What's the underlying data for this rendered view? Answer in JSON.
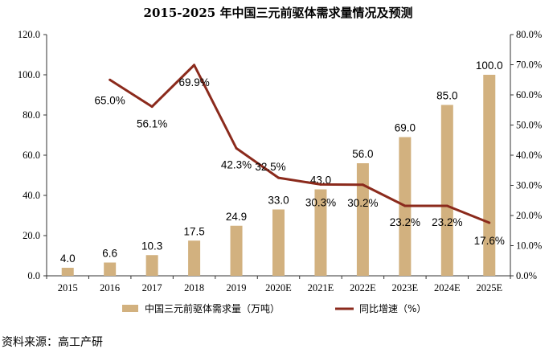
{
  "chart_data": {
    "type": "bar+line",
    "title": "2015-2025 年中国三元前驱体需求量情况及预测",
    "categories": [
      "2015",
      "2016",
      "2017",
      "2018",
      "2019",
      "2020E",
      "2021E",
      "2022E",
      "2023E",
      "2024E",
      "2025E"
    ],
    "series": [
      {
        "name": "中国三元前驱体需求量（万吨）",
        "type": "bar",
        "axis": "left",
        "values": [
          4.0,
          6.6,
          10.3,
          17.5,
          24.9,
          33.0,
          43.0,
          56.0,
          69.0,
          85.0,
          100.0
        ],
        "labels": [
          "4.0",
          "6.6",
          "10.3",
          "17.5",
          "24.9",
          "33.0",
          "43.0",
          "56.0",
          "69.0",
          "85.0",
          "100.0"
        ]
      },
      {
        "name": "同比增速（%）",
        "type": "line",
        "axis": "right",
        "values": [
          null,
          65.0,
          56.1,
          69.9,
          42.3,
          32.5,
          30.3,
          30.2,
          23.2,
          23.2,
          17.6
        ],
        "labels": [
          null,
          "65.0%",
          "56.1%",
          "69.9%",
          "42.3%",
          "32.5%",
          "30.3%",
          "30.2%",
          "23.2%",
          "23.2%",
          "17.6%"
        ]
      }
    ],
    "y_left": {
      "min": 0,
      "max": 120,
      "step": 20,
      "tick_labels": [
        "0.0",
        "20.0",
        "40.0",
        "60.0",
        "80.0",
        "100.0",
        "120.0"
      ]
    },
    "y_right": {
      "min": 0,
      "max": 80,
      "step": 10,
      "tick_labels": [
        "0.0%",
        "10.0%",
        "20.0%",
        "30.0%",
        "40.0%",
        "50.0%",
        "60.0%",
        "70.0%",
        "80.0%"
      ]
    },
    "legend_position": "bottom"
  },
  "colors": {
    "bar": "#d2b17f",
    "line": "#8b2a1c",
    "axis": "#333333"
  },
  "source": "资料来源：高工产研"
}
